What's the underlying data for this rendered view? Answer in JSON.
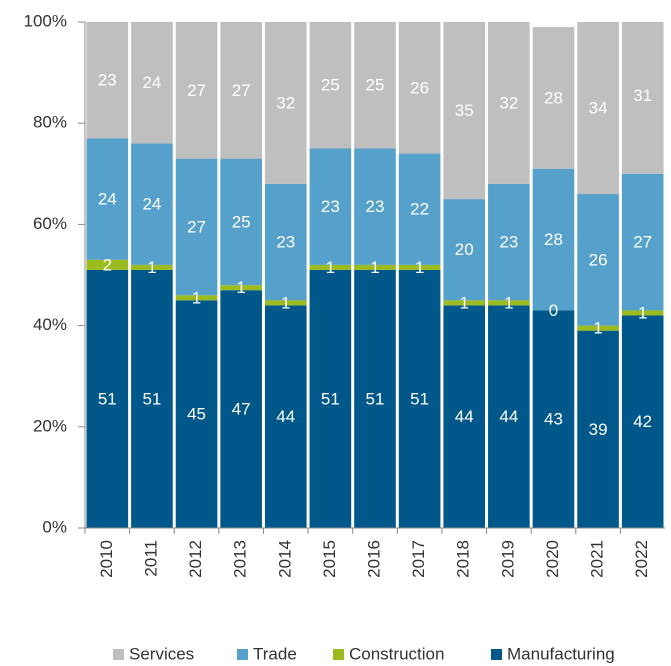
{
  "chart_data": {
    "type": "stacked_bar",
    "categories": [
      "2010",
      "2011",
      "2012",
      "2013",
      "2014",
      "2015",
      "2016",
      "2017",
      "2018",
      "2019",
      "2020",
      "2021",
      "2022"
    ],
    "series": [
      {
        "name": "Services",
        "color": "#bfbfbf",
        "values": [
          23,
          24,
          27,
          27,
          32,
          25,
          25,
          26,
          35,
          32,
          28,
          34,
          31
        ]
      },
      {
        "name": "Trade",
        "color": "#56a0cc",
        "values": [
          24,
          24,
          27,
          25,
          23,
          23,
          23,
          22,
          20,
          23,
          28,
          26,
          27
        ]
      },
      {
        "name": "Construction",
        "color": "#9bbb1e",
        "values": [
          2,
          1,
          1,
          1,
          1,
          1,
          1,
          1,
          1,
          1,
          0,
          1,
          1
        ]
      },
      {
        "name": "Manufacturing",
        "color": "#00578a",
        "values": [
          51,
          51,
          45,
          47,
          44,
          51,
          51,
          51,
          44,
          44,
          43,
          39,
          42
        ]
      }
    ],
    "ylim": [
      0,
      100
    ],
    "yticks": [
      {
        "value": 0,
        "label": "0%"
      },
      {
        "value": 20,
        "label": "20%"
      },
      {
        "value": 40,
        "label": "40%"
      },
      {
        "value": 60,
        "label": "60%"
      },
      {
        "value": 80,
        "label": "80%"
      },
      {
        "value": 100,
        "label": "100%"
      }
    ],
    "legend": "bottom"
  }
}
